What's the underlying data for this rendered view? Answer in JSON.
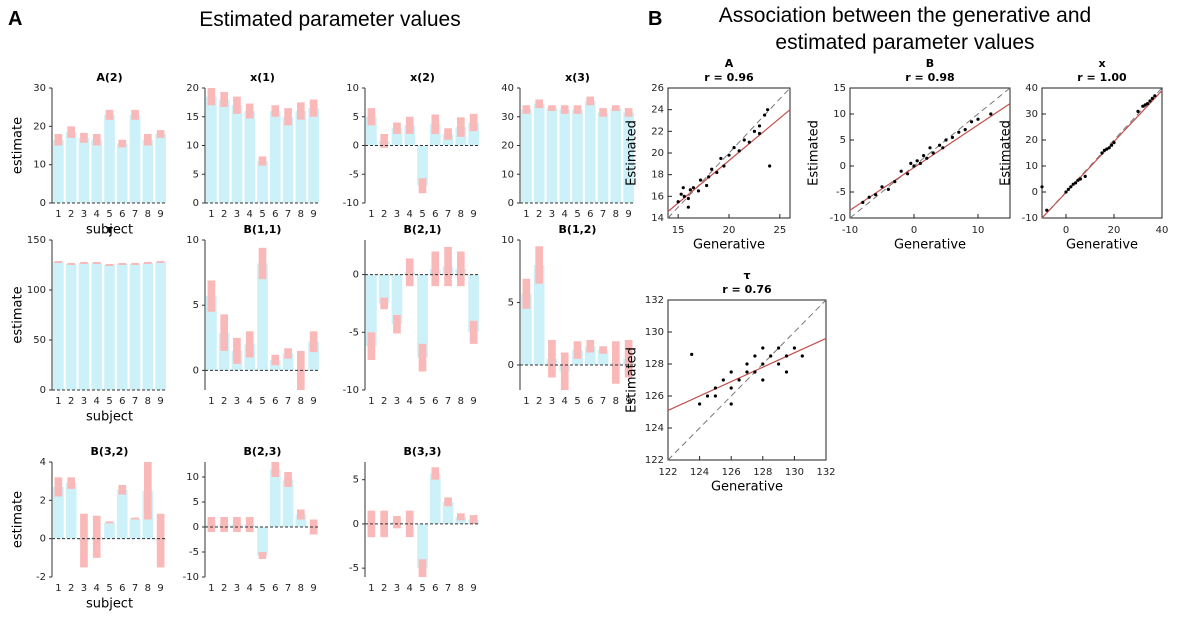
{
  "panels": [
    {
      "label": "A",
      "title": "Estimated parameter values"
    },
    {
      "label": "B",
      "title": "Association between the generative and estimated parameter values"
    }
  ],
  "chart_data": [
    {
      "type": "bar",
      "title": "A(2)",
      "ylabel": "estimate",
      "xlabel": "subject",
      "categories": [
        "1",
        "2",
        "3",
        "4",
        "5",
        "6",
        "7",
        "8",
        "9"
      ],
      "values": [
        16.5,
        18.5,
        17,
        16.5,
        23,
        15.5,
        23,
        16.5,
        18
      ],
      "errors": [
        1.5,
        1.5,
        1.3,
        1.5,
        1.3,
        1,
        1.3,
        1.5,
        1
      ],
      "color": "#cdf1f8",
      "error_color": "#f9b9b9",
      "ylim": [
        0,
        30
      ],
      "yticks": [
        0,
        10,
        20,
        30
      ]
    },
    {
      "type": "bar",
      "title": "x(1)",
      "categories": [
        "1",
        "2",
        "3",
        "4",
        "5",
        "6",
        "7",
        "8",
        "9"
      ],
      "values": [
        18.5,
        18,
        17,
        16,
        7.3,
        16,
        15,
        16,
        16.5
      ],
      "errors": [
        1.5,
        1.3,
        1.5,
        1.3,
        0.8,
        1,
        1.5,
        1.5,
        1.5
      ],
      "color": "#cdf1f8",
      "error_color": "#f9b9b9",
      "ylim": [
        0,
        20
      ],
      "yticks": [
        0,
        5,
        10,
        15,
        20
      ]
    },
    {
      "type": "bar",
      "title": "x(2)",
      "categories": [
        "1",
        "2",
        "3",
        "4",
        "5",
        "6",
        "7",
        "8",
        "9"
      ],
      "values": [
        5,
        0.8,
        3,
        3.5,
        -7,
        3.7,
        2,
        3.2,
        4
      ],
      "errors": [
        1.5,
        1.2,
        1,
        1.5,
        1.3,
        1.7,
        1,
        1.7,
        1.5
      ],
      "color": "#cdf1f8",
      "error_color": "#f9b9b9",
      "ylim": [
        -10,
        10
      ],
      "yticks": [
        -10,
        -5,
        0,
        5,
        10
      ]
    },
    {
      "type": "bar",
      "title": "x(3)",
      "categories": [
        "1",
        "2",
        "3",
        "4",
        "5",
        "6",
        "7",
        "8",
        "9"
      ],
      "values": [
        32.5,
        34.5,
        33,
        32.5,
        32.5,
        35.5,
        31.5,
        33,
        31.5
      ],
      "errors": [
        1.5,
        1.5,
        1,
        1.5,
        1.5,
        1.5,
        1.5,
        1,
        1.5
      ],
      "color": "#cdf1f8",
      "error_color": "#f9b9b9",
      "ylim": [
        0,
        40
      ],
      "yticks": [
        0,
        10,
        20,
        30,
        40
      ]
    },
    {
      "type": "bar",
      "title": "τ",
      "ylabel": "estimate",
      "xlabel": "subject",
      "categories": [
        "1",
        "2",
        "3",
        "4",
        "5",
        "6",
        "7",
        "8",
        "9"
      ],
      "values": [
        128,
        126,
        127,
        127,
        125,
        126,
        126,
        127,
        128
      ],
      "errors": [
        1,
        1,
        1,
        1,
        1,
        1,
        1,
        1,
        1
      ],
      "color": "#cdf1f8",
      "error_color": "#f9b9b9",
      "ylim": [
        0,
        150
      ],
      "yticks": [
        0,
        50,
        100,
        150
      ]
    },
    {
      "type": "bar",
      "title": "B(1,1)",
      "categories": [
        "1",
        "2",
        "3",
        "4",
        "5",
        "6",
        "7",
        "8",
        "9"
      ],
      "values": [
        5.7,
        2.9,
        1.5,
        2,
        8.2,
        0.8,
        1.3,
        0,
        2.2
      ],
      "errors": [
        1.2,
        1.4,
        1,
        1,
        1.2,
        0.4,
        0.4,
        1.5,
        0.8
      ],
      "color": "#cdf1f8",
      "error_color": "#f9b9b9",
      "ylim": [
        -1.5,
        10
      ],
      "yticks": [
        0,
        5,
        10
      ]
    },
    {
      "type": "bar",
      "title": "B(2,1)",
      "categories": [
        "1",
        "2",
        "3",
        "4",
        "5",
        "6",
        "7",
        "8",
        "9"
      ],
      "values": [
        -6.2,
        -2.5,
        -4.3,
        0.2,
        -7.2,
        0.5,
        0.7,
        0.5,
        -5
      ],
      "errors": [
        1.2,
        0.5,
        0.8,
        1.2,
        1.2,
        1.5,
        1.7,
        1.5,
        1
      ],
      "color": "#cdf1f8",
      "error_color": "#f9b9b9",
      "ylim": [
        -10,
        3
      ],
      "yticks": [
        -10,
        -5,
        0
      ]
    },
    {
      "type": "bar",
      "title": "B(1,2)",
      "categories": [
        "1",
        "2",
        "3",
        "4",
        "5",
        "6",
        "7",
        "8",
        "9"
      ],
      "values": [
        5.7,
        8,
        0.5,
        -0.5,
        1.2,
        1.5,
        1.2,
        0.2,
        0.5
      ],
      "errors": [
        1.2,
        1.5,
        1.5,
        1.5,
        0.7,
        0.5,
        0.3,
        1.7,
        1.5
      ],
      "color": "#cdf1f8",
      "error_color": "#f9b9b9",
      "ylim": [
        -2,
        10
      ],
      "yticks": [
        0,
        5,
        10
      ]
    },
    {
      "type": "bar",
      "title": "B(3,2)",
      "ylabel": "estimate",
      "xlabel": "subject",
      "categories": [
        "1",
        "2",
        "3",
        "4",
        "5",
        "6",
        "7",
        "8",
        "9"
      ],
      "values": [
        2.7,
        2.9,
        -0.1,
        0.1,
        0.85,
        2.55,
        1.05,
        2.5,
        -0.1
      ],
      "errors": [
        0.5,
        0.3,
        1.4,
        1.1,
        0.05,
        0.25,
        0.05,
        1.5,
        1.4
      ],
      "color": "#cdf1f8",
      "error_color": "#f9b9b9",
      "ylim": [
        -2,
        4
      ],
      "yticks": [
        -2,
        0,
        2,
        4
      ]
    },
    {
      "type": "bar",
      "title": "B(2,3)",
      "categories": [
        "1",
        "2",
        "3",
        "4",
        "5",
        "6",
        "7",
        "8",
        "9"
      ],
      "values": [
        0.5,
        0.5,
        0.5,
        0.5,
        -5.7,
        11.5,
        9.5,
        2.5,
        0
      ],
      "errors": [
        1.5,
        1.5,
        1.5,
        1.5,
        0.7,
        1.5,
        1.5,
        1,
        1.5
      ],
      "color": "#cdf1f8",
      "error_color": "#f9b9b9",
      "ylim": [
        -10,
        13
      ],
      "yticks": [
        -10,
        -5,
        0,
        5,
        10
      ]
    },
    {
      "type": "bar",
      "title": "B(3,3)",
      "categories": [
        "1",
        "2",
        "3",
        "4",
        "5",
        "6",
        "7",
        "8",
        "9"
      ],
      "values": [
        0,
        0,
        0.2,
        0,
        -5,
        5.7,
        2.5,
        0.8,
        0.5
      ],
      "errors": [
        1.5,
        1.5,
        0.7,
        1.5,
        1,
        0.7,
        0.5,
        0.4,
        0.5
      ],
      "color": "#cdf1f8",
      "error_color": "#f9b9b9",
      "ylim": [
        -6,
        7
      ],
      "yticks": [
        -5,
        0,
        5
      ]
    },
    {
      "type": "scatter",
      "title": "A",
      "subtitle": "r = 0.96",
      "xlabel": "Generative",
      "ylabel": "Estimated",
      "color": "#000000",
      "x": [
        15,
        15.3,
        15.6,
        16,
        16.2,
        16.5,
        17,
        17.2,
        17.8,
        18,
        18.3,
        18.8,
        19.2,
        19.5,
        20,
        20.5,
        21,
        21.5,
        22,
        22.5,
        23,
        23.5,
        23.8,
        24,
        23,
        16,
        15.5
      ],
      "values": [
        15.5,
        16.2,
        16,
        15.8,
        16.6,
        16.8,
        16.5,
        17.5,
        17,
        17.8,
        18.5,
        18.2,
        19.5,
        18.8,
        19.8,
        20.5,
        20.2,
        21.2,
        21,
        22,
        22.5,
        23.5,
        24,
        18.8,
        21.8,
        15,
        16.8
      ],
      "fit": {
        "x": [
          14,
          26
        ],
        "values": [
          14.6,
          24
        ],
        "color": "#c0504d"
      },
      "xlim": [
        14,
        26
      ],
      "ylim": [
        14,
        26
      ],
      "xticks": [
        15,
        20,
        25
      ],
      "yticks": [
        14,
        16,
        18,
        20,
        22,
        24,
        26
      ]
    },
    {
      "type": "scatter",
      "title": "B",
      "subtitle": "r = 0.98",
      "xlabel": "Generative",
      "ylabel": "Estimated",
      "color": "#000000",
      "x": [
        -7,
        -6,
        -5,
        -4,
        -3,
        -2,
        -1,
        0,
        0.5,
        1,
        2,
        3,
        4,
        5,
        6,
        7,
        8,
        9,
        10,
        12,
        -8,
        1.5,
        -0.5,
        2.5,
        4.5
      ],
      "values": [
        -6,
        -5.5,
        -4,
        -4.5,
        -3,
        -1,
        -1.5,
        0,
        1,
        0.5,
        1.5,
        2.5,
        4,
        5,
        5.5,
        6.5,
        7,
        8.5,
        9,
        10,
        -7,
        2,
        0.5,
        3.5,
        3.5
      ],
      "fit": {
        "x": [
          -10,
          15
        ],
        "values": [
          -8.5,
          12
        ],
        "color": "#c0504d"
      },
      "xlim": [
        -10,
        15
      ],
      "ylim": [
        -10,
        15
      ],
      "xticks": [
        -10,
        0,
        10
      ],
      "yticks": [
        -10,
        -5,
        0,
        5,
        10,
        15
      ]
    },
    {
      "type": "scatter",
      "title": "x",
      "subtitle": "r = 1.00",
      "xlabel": "Generative",
      "ylabel": "Estimated",
      "color": "#000000",
      "x": [
        -10,
        0,
        1,
        2,
        3,
        4,
        5,
        6,
        8,
        15,
        16,
        17,
        18,
        19,
        20,
        32,
        33,
        34,
        35,
        36,
        37,
        30,
        -8
      ],
      "values": [
        2,
        0,
        1,
        2,
        3,
        3.5,
        4.5,
        5,
        6,
        15,
        16,
        16.5,
        17,
        18,
        19,
        33,
        33.5,
        34,
        35,
        36,
        37,
        31,
        -7
      ],
      "fit": {
        "x": [
          -10,
          40
        ],
        "values": [
          -10,
          39
        ],
        "color": "#c0504d"
      },
      "xlim": [
        -10,
        40
      ],
      "ylim": [
        -10,
        40
      ],
      "xticks": [
        0,
        20,
        40
      ],
      "yticks": [
        -10,
        0,
        10,
        20,
        30,
        40
      ]
    },
    {
      "type": "scatter",
      "title": "τ",
      "subtitle": "r = 0.76",
      "xlabel": "Generative",
      "ylabel": "Estimated",
      "color": "#000000",
      "x": [
        124,
        124.5,
        125,
        125,
        125.5,
        126,
        126,
        126.5,
        127,
        127,
        127.5,
        127.5,
        128,
        128,
        128.5,
        129,
        129,
        129.5,
        130,
        130.5,
        123.5,
        126,
        128,
        129.5
      ],
      "values": [
        125.5,
        126,
        126,
        126.5,
        127,
        126.5,
        127.5,
        127,
        127.5,
        128,
        127.5,
        128.5,
        128,
        127,
        128.5,
        128,
        129,
        128.5,
        129,
        128.5,
        128.6,
        125.5,
        129,
        127.5
      ],
      "fit": {
        "x": [
          122,
          132
        ],
        "values": [
          125.1,
          129.6
        ],
        "color": "#c0504d"
      },
      "xlim": [
        122,
        132
      ],
      "ylim": [
        122,
        132
      ],
      "xticks": [
        122,
        124,
        126,
        128,
        130,
        132
      ],
      "yticks": [
        122,
        124,
        126,
        128,
        130,
        132
      ]
    }
  ]
}
